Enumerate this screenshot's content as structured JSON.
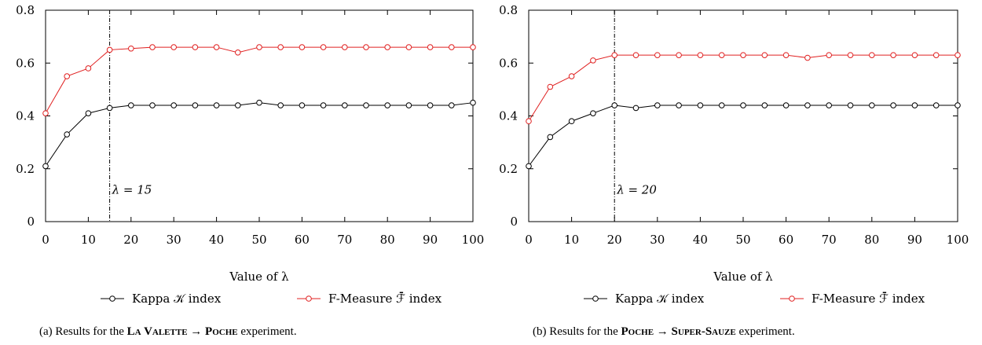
{
  "chart_data": [
    {
      "type": "line",
      "panel": "a",
      "xlabel": "Value of λ",
      "ylabel": "",
      "xlim": [
        0,
        100
      ],
      "ylim": [
        0,
        0.8
      ],
      "xticks": [
        0,
        10,
        20,
        30,
        40,
        50,
        60,
        70,
        80,
        90,
        100
      ],
      "yticks": [
        0,
        0.2,
        0.4,
        0.6,
        0.8
      ],
      "x": [
        0,
        5,
        10,
        15,
        20,
        25,
        30,
        35,
        40,
        45,
        50,
        55,
        60,
        65,
        70,
        75,
        80,
        85,
        90,
        95,
        100
      ],
      "series": [
        {
          "name": "Kappa 𝒦 index",
          "color": "#000000",
          "values": [
            0.21,
            0.33,
            0.41,
            0.43,
            0.44,
            0.44,
            0.44,
            0.44,
            0.44,
            0.44,
            0.45,
            0.44,
            0.44,
            0.44,
            0.44,
            0.44,
            0.44,
            0.44,
            0.44,
            0.44,
            0.45
          ]
        },
        {
          "name": "F-Measure ℱ̄ index",
          "color": "#e02020",
          "values": [
            0.41,
            0.55,
            0.58,
            0.65,
            0.655,
            0.66,
            0.66,
            0.66,
            0.66,
            0.64,
            0.66,
            0.66,
            0.66,
            0.66,
            0.66,
            0.66,
            0.66,
            0.66,
            0.66,
            0.66,
            0.66
          ]
        }
      ],
      "vline": {
        "x": 15,
        "label": "λ = 15"
      },
      "legend_position": "bottom-center",
      "grid": false,
      "caption": {
        "prefix": "(a)  Results for the ",
        "bold1": "La Valette",
        "arrow": " → ",
        "bold2": "Poche",
        "suffix": " experiment."
      }
    },
    {
      "type": "line",
      "panel": "b",
      "xlabel": "Value of λ",
      "ylabel": "",
      "xlim": [
        0,
        100
      ],
      "ylim": [
        0,
        0.8
      ],
      "xticks": [
        0,
        10,
        20,
        30,
        40,
        50,
        60,
        70,
        80,
        90,
        100
      ],
      "yticks": [
        0,
        0.2,
        0.4,
        0.6,
        0.8
      ],
      "x": [
        0,
        5,
        10,
        15,
        20,
        25,
        30,
        35,
        40,
        45,
        50,
        55,
        60,
        65,
        70,
        75,
        80,
        85,
        90,
        95,
        100
      ],
      "series": [
        {
          "name": "Kappa 𝒦 index",
          "color": "#000000",
          "values": [
            0.21,
            0.32,
            0.38,
            0.41,
            0.44,
            0.43,
            0.44,
            0.44,
            0.44,
            0.44,
            0.44,
            0.44,
            0.44,
            0.44,
            0.44,
            0.44,
            0.44,
            0.44,
            0.44,
            0.44,
            0.44
          ]
        },
        {
          "name": "F-Measure ℱ̄ index",
          "color": "#e02020",
          "values": [
            0.38,
            0.51,
            0.55,
            0.61,
            0.63,
            0.63,
            0.63,
            0.63,
            0.63,
            0.63,
            0.63,
            0.63,
            0.63,
            0.62,
            0.63,
            0.63,
            0.63,
            0.63,
            0.63,
            0.63,
            0.63
          ]
        }
      ],
      "vline": {
        "x": 20,
        "label": "λ = 20"
      },
      "legend_position": "bottom-center",
      "grid": false,
      "caption": {
        "prefix": "(b)  Results for the ",
        "bold1": "Poche",
        "arrow": " → ",
        "bold2": "Super-Sauze",
        "suffix": " experiment."
      }
    }
  ]
}
